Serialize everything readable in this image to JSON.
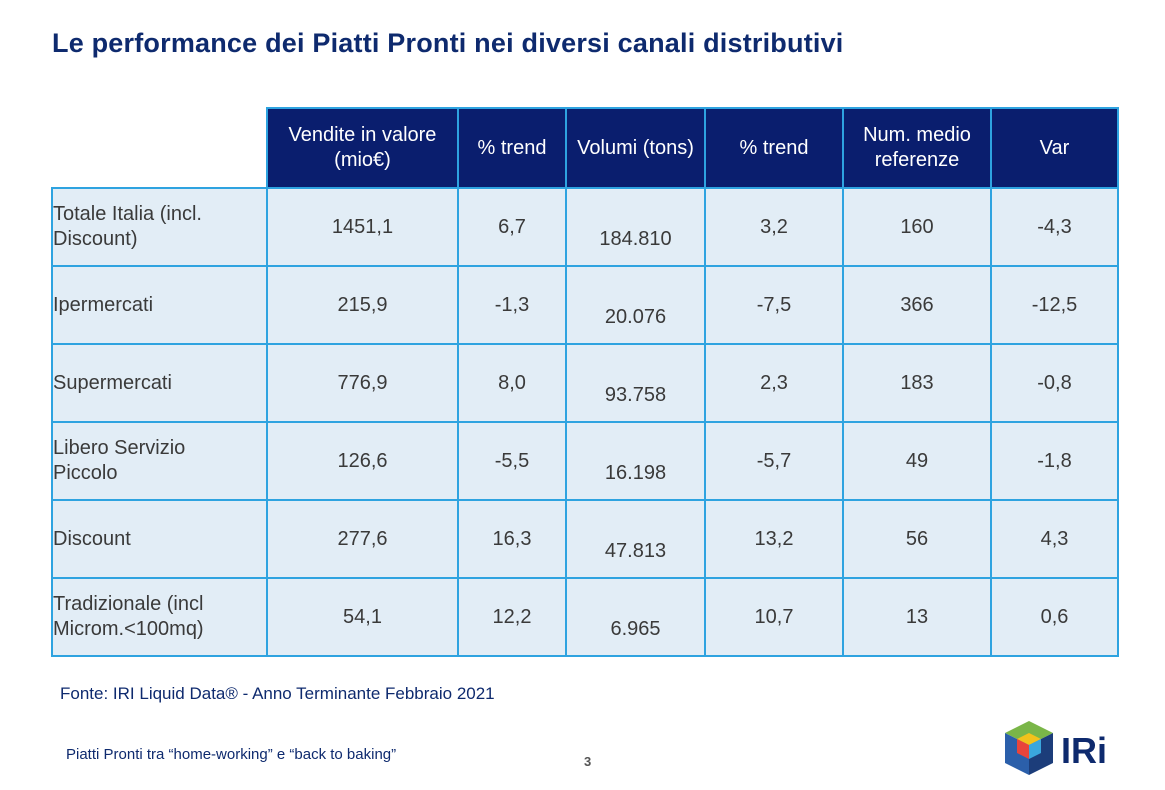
{
  "title": "Le performance dei Piatti Pronti nei diversi canali distributivi",
  "table": {
    "headers": [
      {
        "line1": "Vendite in valore",
        "line2": "(mio€)"
      },
      {
        "line1": "% trend",
        "line2": ""
      },
      {
        "line1": "Volumi (tons)",
        "line2": ""
      },
      {
        "line1": "% trend",
        "line2": ""
      },
      {
        "line1": "Num. medio",
        "line2": "referenze"
      },
      {
        "line1": "Var",
        "line2": ""
      }
    ],
    "rows": [
      {
        "label1": "Totale Italia (incl.",
        "label2": "Discount)",
        "values": [
          "1451,1",
          "6,7",
          "184.810",
          "3,2",
          "160",
          "-4,3"
        ]
      },
      {
        "label1": "Ipermercati",
        "label2": "",
        "values": [
          "215,9",
          "-1,3",
          "20.076",
          "-7,5",
          "366",
          "-12,5"
        ]
      },
      {
        "label1": "Supermercati",
        "label2": "",
        "values": [
          "776,9",
          "8,0",
          "93.758",
          "2,3",
          "183",
          "-0,8"
        ]
      },
      {
        "label1": "Libero Servizio",
        "label2": "Piccolo",
        "values": [
          "126,6",
          "-5,5",
          "16.198",
          "-5,7",
          "49",
          "-1,8"
        ]
      },
      {
        "label1": "Discount",
        "label2": "",
        "values": [
          "277,6",
          "16,3",
          "47.813",
          "13,2",
          "56",
          "4,3"
        ]
      },
      {
        "label1": "Tradizionale (incl",
        "label2": "Microm.<100mq)",
        "values": [
          "54,1",
          "12,2",
          "6.965",
          "10,7",
          "13",
          "0,6"
        ]
      }
    ]
  },
  "source": "Fonte: IRI Liquid Data® - Anno Terminante Febbraio 2021",
  "footer": "Piatti Pronti tra “home-working” e “back to baking”",
  "page_number": "3",
  "logo": {
    "text": "IRi",
    "colors": [
      "#7ab648",
      "#f2c21b",
      "#e8453c",
      "#2b5faa",
      "#1c3d7a"
    ]
  }
}
